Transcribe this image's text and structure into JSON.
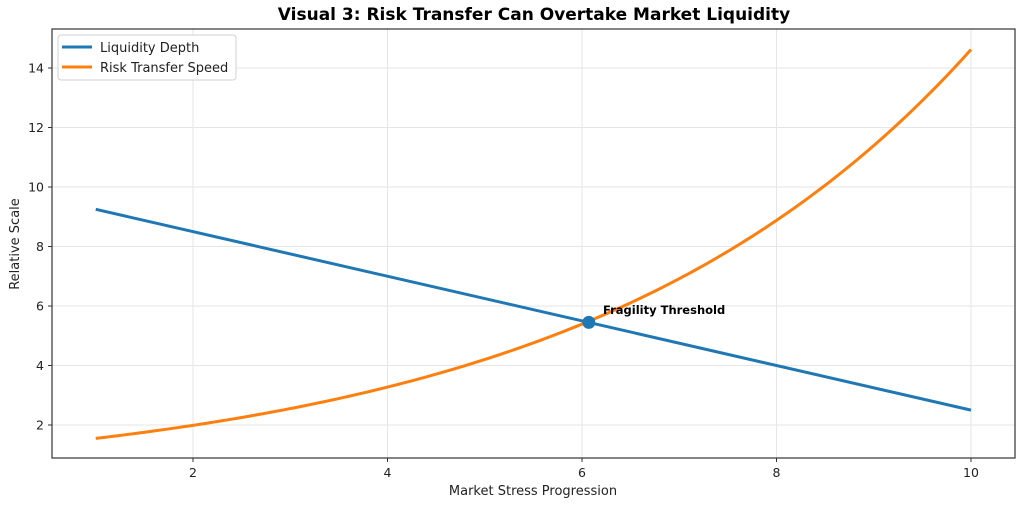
{
  "chart_data": {
    "type": "line",
    "title": "Visual 3: Risk Transfer Can Overtake Market Liquidity",
    "xlabel": "Market Stress Progression",
    "ylabel": "Relative Scale",
    "xlim": [
      0.1,
      10.45
    ],
    "ylim": [
      0.9,
      15.3
    ],
    "xticks": [
      2,
      4,
      6,
      8,
      10
    ],
    "yticks": [
      2,
      4,
      6,
      8,
      10,
      12,
      14
    ],
    "grid": true,
    "legend_position": "upper left",
    "x": [
      1,
      2,
      3,
      4,
      5,
      6,
      6.07,
      7,
      8,
      9,
      10
    ],
    "series": [
      {
        "name": "Liquidity Depth",
        "color": "#1f77b4",
        "values": [
          9.25,
          8.5,
          7.75,
          7.0,
          6.25,
          5.5,
          5.45,
          4.75,
          4.0,
          3.25,
          2.5
        ]
      },
      {
        "name": "Risk Transfer Speed",
        "color": "#ff7f0e",
        "values": [
          1.55,
          1.97,
          2.52,
          3.24,
          4.17,
          5.35,
          5.45,
          6.88,
          8.85,
          11.37,
          14.62
        ]
      }
    ],
    "annotations": [
      {
        "text": "Fragility Threshold",
        "x": 6.07,
        "y": 5.45,
        "marker": "circle",
        "color": "#1f77b4"
      }
    ]
  },
  "labels": {
    "title": "Visual 3: Risk Transfer Can Overtake Market Liquidity",
    "xlabel": "Market Stress Progression",
    "ylabel": "Relative Scale",
    "annotation": "Fragility Threshold",
    "legend": [
      "Liquidity Depth",
      "Risk Transfer Speed"
    ],
    "xticks": [
      "2",
      "4",
      "6",
      "8",
      "10"
    ],
    "yticks": [
      "2",
      "4",
      "6",
      "8",
      "10",
      "12",
      "14"
    ]
  }
}
